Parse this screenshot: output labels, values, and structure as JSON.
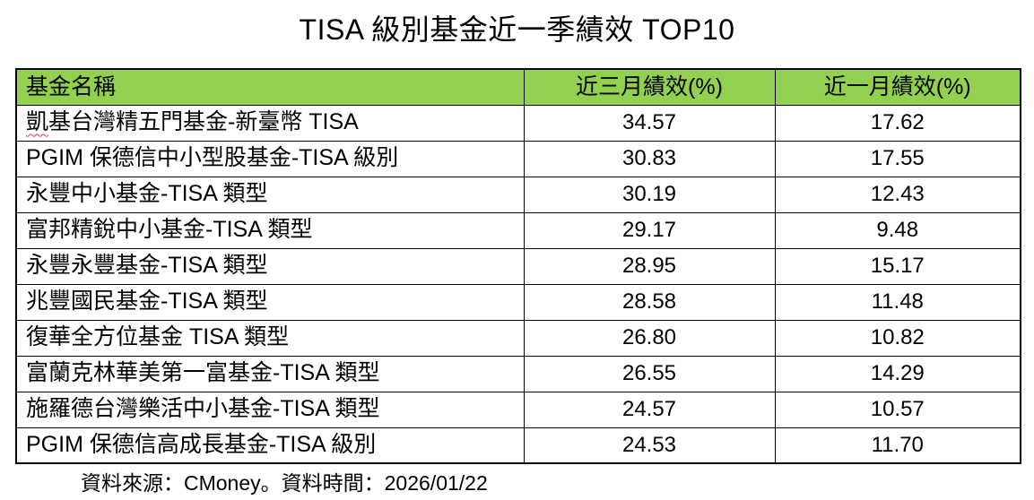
{
  "page": {
    "title": "TISA 級別基金近一季績效 TOP10",
    "source_note": "資料來源：CMoney。資料時間：2026/01/22"
  },
  "table": {
    "headers": [
      "基金名稱",
      "近三月績效(%)",
      "近一月績效(%)"
    ],
    "rows": [
      {
        "fund": "凱基台灣精五門基金-新臺幣 TISA",
        "three_month": "34.57",
        "one_month": "17.62",
        "spellcheck_prefix": "凱"
      },
      {
        "fund": "PGIM 保德信中小型股基金-TISA 級別",
        "three_month": "30.83",
        "one_month": "17.55"
      },
      {
        "fund": "永豐中小基金-TISA 類型",
        "three_month": "30.19",
        "one_month": "12.43"
      },
      {
        "fund": "富邦精銳中小基金-TISA 類型",
        "three_month": "29.17",
        "one_month": "9.48"
      },
      {
        "fund": "永豐永豐基金-TISA 類型",
        "three_month": "28.95",
        "one_month": "15.17"
      },
      {
        "fund": "兆豐國民基金-TISA 類型",
        "three_month": "28.58",
        "one_month": "11.48"
      },
      {
        "fund": "復華全方位基金 TISA 類型",
        "three_month": "26.80",
        "one_month": "10.82"
      },
      {
        "fund": "富蘭克林華美第一富基金-TISA 類型",
        "three_month": "26.55",
        "one_month": "14.29"
      },
      {
        "fund": "施羅德台灣樂活中小基金-TISA 類型",
        "three_month": "24.57",
        "one_month": "10.57"
      },
      {
        "fund": "PGIM 保德信高成長基金-TISA 級別",
        "three_month": "24.53",
        "one_month": "11.70"
      }
    ]
  },
  "colors": {
    "header_bg": "#92D050",
    "border": "#000000",
    "text": "#000000",
    "spellcheck_underline": "#E03C31"
  }
}
